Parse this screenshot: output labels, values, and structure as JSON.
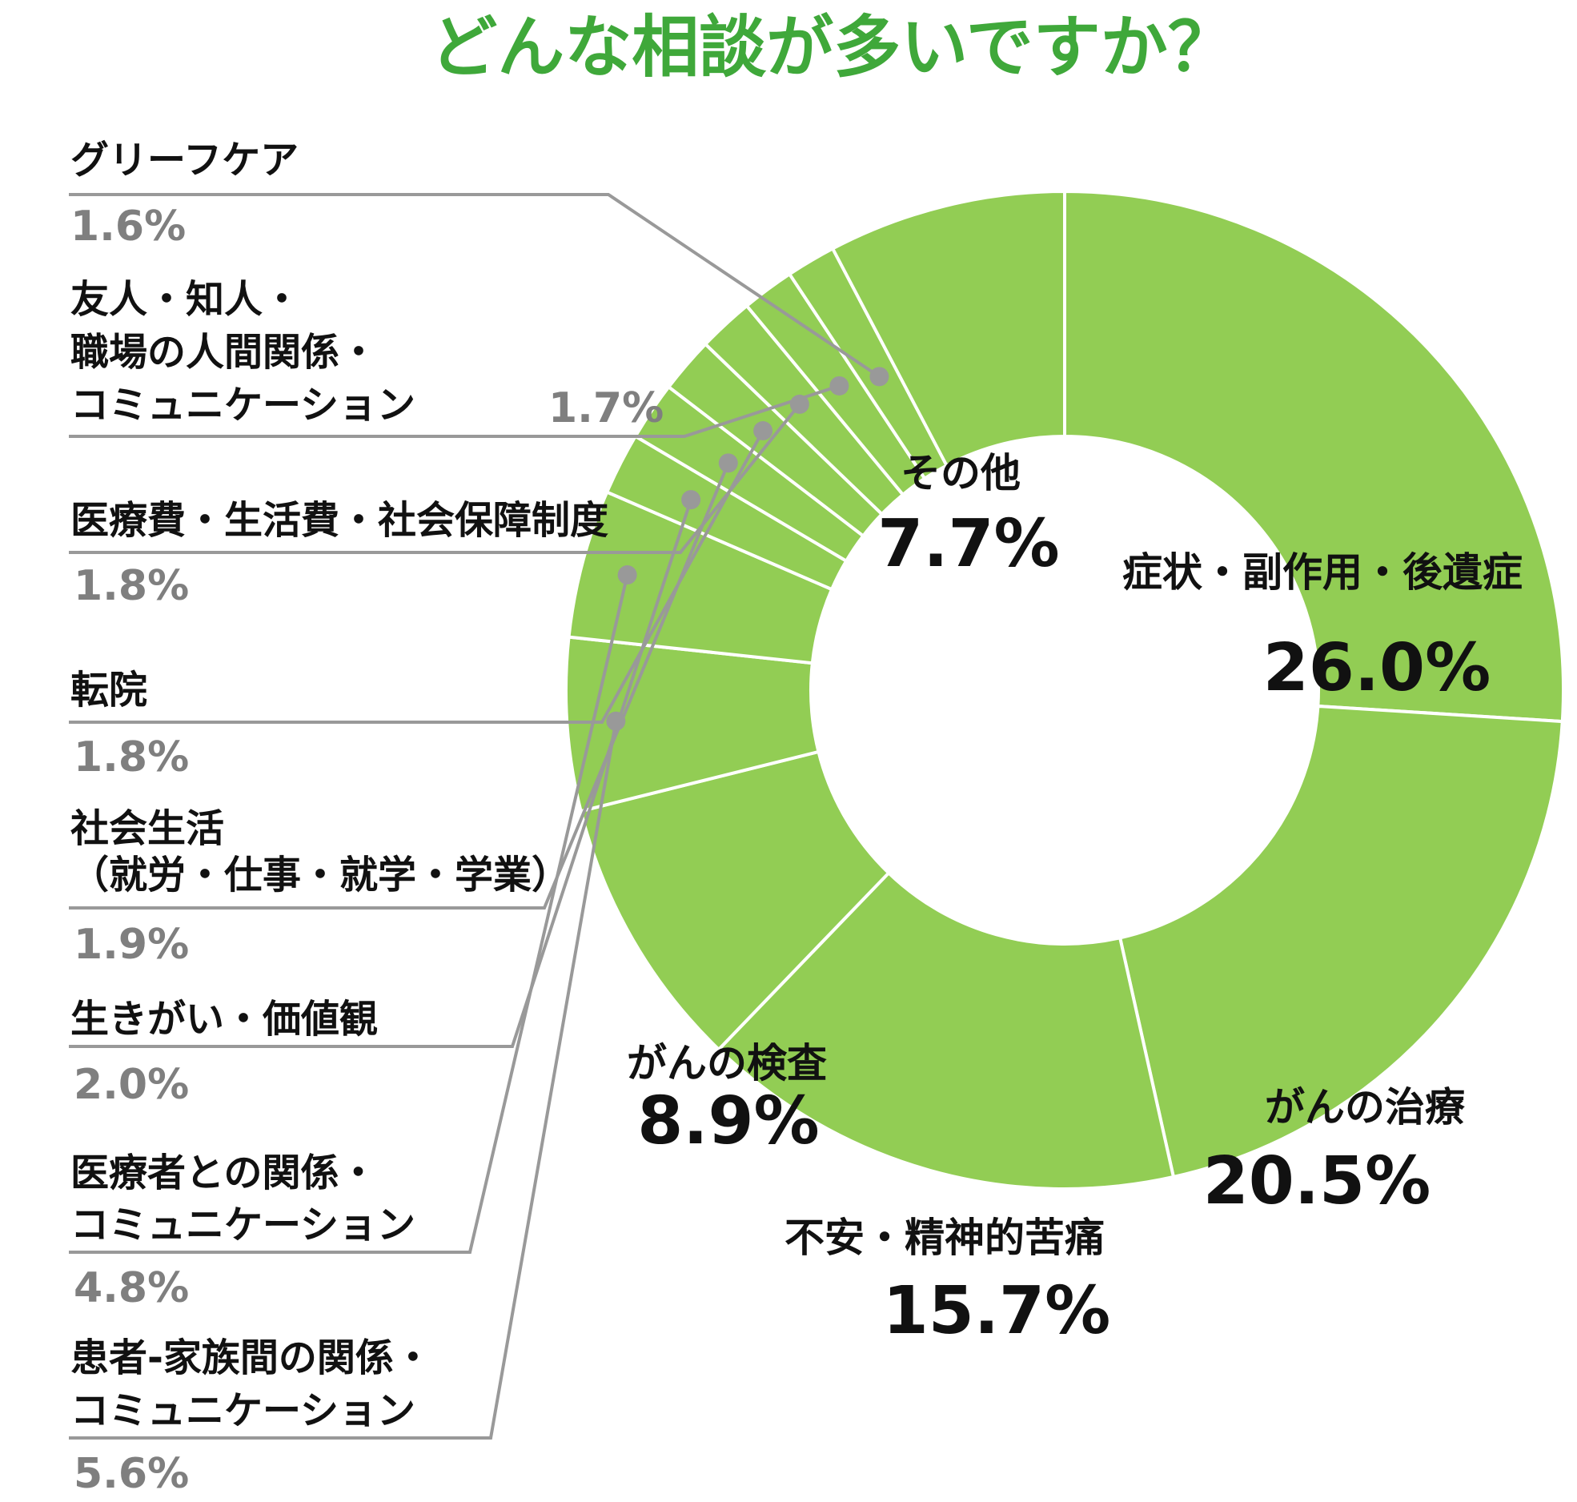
{
  "chart_data": {
    "type": "pie",
    "donut": true,
    "title": "どんな相談が多いですか？",
    "slice_color": "#92cd54",
    "separator_color": "#ffffff",
    "leader_color": "#999999",
    "dot_color": "#999999",
    "title_color": "#3fa83a",
    "label_color": "#111111",
    "small_value_color": "#7f7f7f",
    "slices": [
      {
        "lines": [
          "症状・副作用・後遺症"
        ],
        "value": 26.0,
        "value_text": "26.0%"
      },
      {
        "lines": [
          "がんの治療"
        ],
        "value": 20.5,
        "value_text": "20.5%"
      },
      {
        "lines": [
          "不安・精神的苦痛"
        ],
        "value": 15.7,
        "value_text": "15.7%"
      },
      {
        "lines": [
          "がんの検査"
        ],
        "value": 8.9,
        "value_text": "8.9%"
      },
      {
        "lines": [
          "患者-家族間の関係・",
          "コミュニケーション"
        ],
        "value": 5.6,
        "value_text": "5.6%"
      },
      {
        "lines": [
          "医療者との関係・",
          "コミュニケーション"
        ],
        "value": 4.8,
        "value_text": "4.8%"
      },
      {
        "lines": [
          "生きがい・価値観"
        ],
        "value": 2.0,
        "value_text": "2.0%"
      },
      {
        "lines": [
          "社会生活",
          "（就労・仕事・就学・学業）"
        ],
        "value": 1.9,
        "value_text": "1.9%"
      },
      {
        "lines": [
          "転院"
        ],
        "value": 1.8,
        "value_text": "1.8%"
      },
      {
        "lines": [
          "医療費・生活費・社会保障制度"
        ],
        "value": 1.8,
        "value_text": "1.8%"
      },
      {
        "lines": [
          "友人・知人・",
          "職場の人間関係・",
          "コミュニケーション"
        ],
        "value": 1.7,
        "value_text": "1.7%"
      },
      {
        "lines": [
          "グリーフケア"
        ],
        "value": 1.6,
        "value_text": "1.6%"
      },
      {
        "lines": [
          "その他"
        ],
        "value": 7.7,
        "value_text": "7.7%"
      }
    ]
  }
}
